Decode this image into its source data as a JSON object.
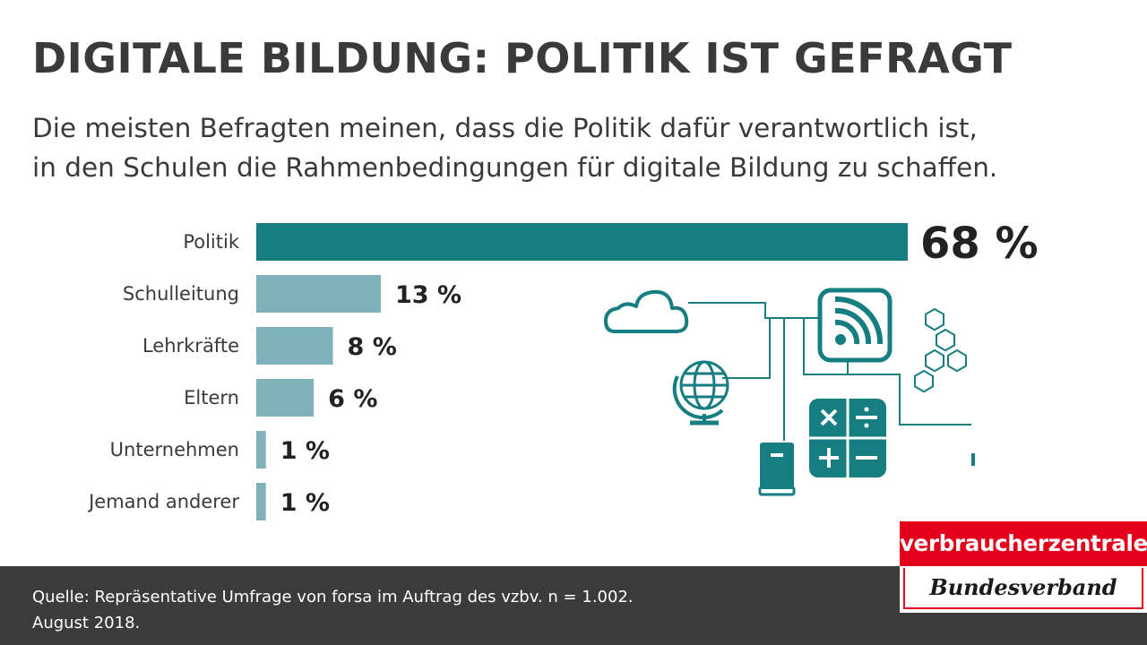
{
  "header": {
    "title": "DIGITALE BILDUNG: POLITIK IST GEFRAGT",
    "subtitle_line1": "Die meisten Befragten meinen, dass die Politik dafür verantwortlich ist,",
    "subtitle_line2": "in den Schulen die Rahmenbedingungen für digitale Bildung zu schaffen."
  },
  "chart_data": {
    "type": "bar",
    "orientation": "horizontal",
    "categories": [
      "Politik",
      "Schulleitung",
      "Lehrkräfte",
      "Eltern",
      "Unternehmen",
      "Jemand anderer"
    ],
    "values": [
      68,
      13,
      8,
      6,
      1,
      1
    ],
    "value_labels": [
      "68 %",
      "13 %",
      "8 %",
      "6 %",
      "1 %",
      "1 %"
    ],
    "unit": "%",
    "xlim": [
      0,
      70
    ],
    "grid": false,
    "legend": "none",
    "colors": {
      "highlight": "#167d80",
      "default": "#7fb1ba"
    }
  },
  "illustration": {
    "icons": [
      "cloud-icon",
      "globe-icon",
      "rss-feed-icon",
      "book-icon",
      "calculator-icon",
      "hexagon-molecule-icon",
      "microscope-icon"
    ],
    "color": "#167d80"
  },
  "footer": {
    "source_line1": "Quelle: Repräsentative Umfrage von forsa im Auftrag des vzbv. n = 1.002.",
    "source_line2": "August 2018."
  },
  "logo": {
    "top_text": "verbraucherzentrale",
    "bottom_text": "Bundesverband",
    "colors": {
      "red": "#e4001b"
    }
  }
}
